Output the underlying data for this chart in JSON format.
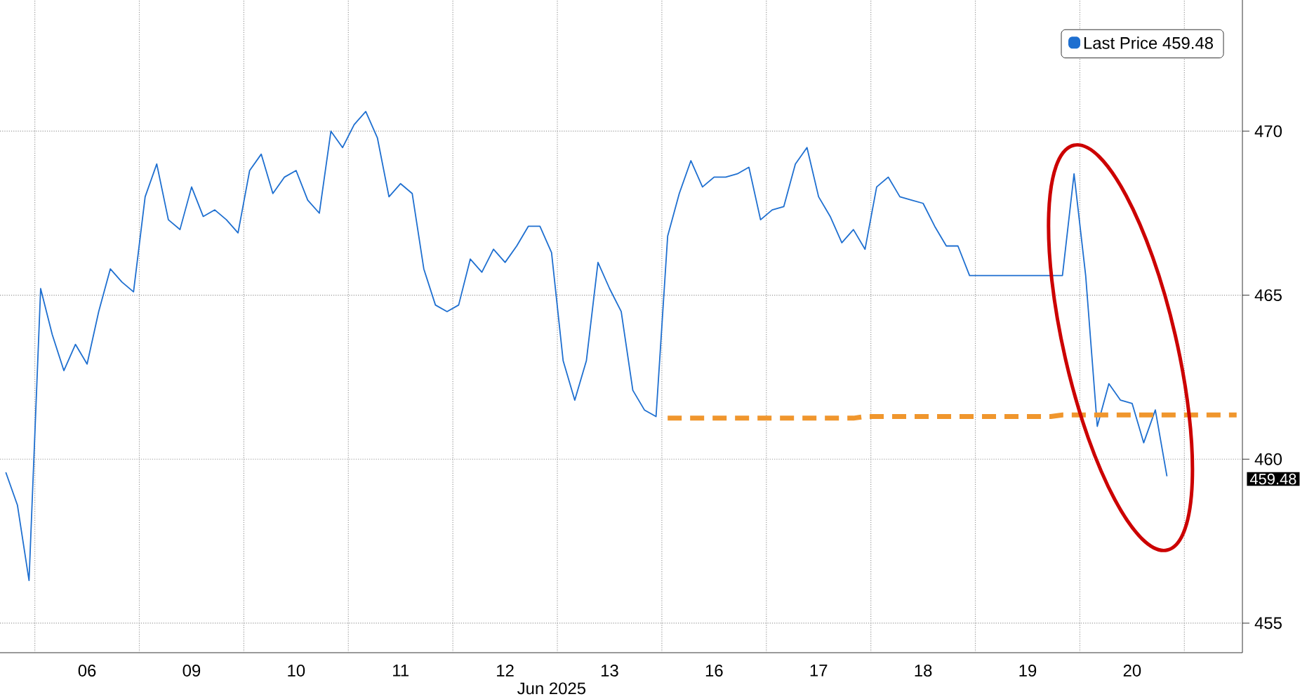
{
  "chart_data": {
    "type": "line",
    "xlabel": "Jun 2025",
    "categories": [
      null,
      null,
      null,
      null,
      null,
      null,
      null,
      "06",
      null,
      null,
      null,
      null,
      null,
      null,
      null,
      null,
      "09",
      null,
      null,
      null,
      null,
      null,
      null,
      null,
      null,
      "10",
      null,
      null,
      null,
      null,
      null,
      null,
      null,
      null,
      "11",
      null,
      null,
      null,
      null,
      null,
      null,
      null,
      null,
      "12",
      null,
      null,
      null,
      null,
      null,
      null,
      null,
      null,
      "13",
      null,
      null,
      null,
      null,
      null,
      null,
      null,
      null,
      "16",
      null,
      null,
      null,
      null,
      null,
      null,
      null,
      null,
      "17",
      null,
      null,
      null,
      null,
      null,
      null,
      null,
      null,
      "18",
      null,
      null,
      null,
      null,
      null,
      null,
      null,
      null,
      "19",
      null,
      null,
      null,
      null,
      null,
      null,
      null,
      null,
      "20",
      null,
      null,
      null,
      null,
      null,
      null,
      null,
      null,
      null
    ],
    "ylim": [
      454.1,
      474.0
    ],
    "yticks": [
      455,
      460,
      465,
      470
    ],
    "grid": true,
    "legend": "top right",
    "annotations": [
      "459.48"
    ],
    "series": [
      {
        "name": "Last Price 459.48",
        "color": "#1e6fd0",
        "values": [
          459.6,
          458.6,
          456.3,
          465.2,
          463.8,
          462.7,
          463.5,
          462.9,
          464.5,
          465.8,
          465.4,
          465.1,
          468.0,
          469.0,
          467.3,
          467.0,
          468.3,
          467.4,
          467.6,
          467.3,
          466.9,
          468.8,
          469.3,
          468.1,
          468.6,
          468.8,
          467.9,
          467.5,
          470.0,
          469.5,
          470.2,
          470.6,
          469.8,
          468.0,
          468.4,
          468.1,
          465.8,
          464.7,
          464.5,
          464.7,
          466.1,
          465.7,
          466.4,
          466.0,
          466.5,
          467.1,
          467.1,
          466.3,
          463.0,
          461.8,
          463.0,
          466.0,
          465.2,
          464.5,
          462.1,
          461.5,
          461.3,
          466.8,
          468.1,
          469.1,
          468.3,
          468.6,
          468.6,
          468.7,
          468.9,
          467.3,
          467.6,
          467.7,
          469.0,
          469.5,
          468.0,
          467.4,
          466.6,
          467.0,
          466.4,
          468.3,
          468.6,
          468.0,
          467.9,
          467.8,
          467.1,
          466.5,
          466.5,
          465.6,
          465.6,
          465.6,
          465.6,
          465.6,
          465.6,
          465.6,
          465.6,
          465.6,
          468.7,
          465.6,
          461.0,
          462.3,
          461.8,
          461.7,
          460.5,
          461.5,
          459.48,
          null,
          null,
          null,
          null,
          null,
          null
        ]
      },
      {
        "type": "line",
        "color": "#f0962d",
        "line_style": "dashed",
        "values": [
          null,
          null,
          null,
          null,
          null,
          null,
          null,
          null,
          null,
          null,
          null,
          null,
          null,
          null,
          null,
          null,
          null,
          null,
          null,
          null,
          null,
          null,
          null,
          null,
          null,
          null,
          null,
          null,
          null,
          null,
          null,
          null,
          null,
          null,
          null,
          null,
          null,
          null,
          null,
          null,
          null,
          null,
          null,
          null,
          null,
          null,
          null,
          null,
          null,
          null,
          null,
          null,
          null,
          null,
          null,
          null,
          null,
          461.25,
          461.25,
          461.25,
          461.25,
          461.25,
          461.25,
          461.25,
          461.25,
          461.25,
          461.25,
          461.25,
          461.25,
          461.25,
          461.25,
          461.25,
          461.25,
          461.25,
          461.3,
          461.3,
          461.3,
          461.3,
          461.3,
          461.3,
          461.3,
          461.3,
          461.3,
          461.3,
          461.3,
          461.3,
          461.3,
          461.3,
          461.3,
          461.3,
          461.3,
          461.35,
          461.35,
          461.35,
          461.35,
          461.35,
          461.35,
          461.35,
          461.35,
          461.35,
          461.35,
          461.35,
          461.35,
          461.35,
          461.35,
          461.35,
          461.35
        ]
      }
    ]
  }
}
